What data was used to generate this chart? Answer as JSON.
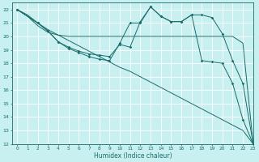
{
  "title": "",
  "xlabel": "Humidex (Indice chaleur)",
  "bg_color": "#c8f0f0",
  "line_color": "#1a6b6b",
  "grid_color": "#ffffff",
  "xmin": -0.5,
  "xmax": 23,
  "ymin": 12,
  "ymax": 22.5,
  "yticks": [
    12,
    13,
    14,
    15,
    16,
    17,
    18,
    19,
    20,
    21,
    22
  ],
  "xticks": [
    0,
    1,
    2,
    3,
    4,
    5,
    6,
    7,
    8,
    9,
    10,
    11,
    12,
    13,
    14,
    15,
    16,
    17,
    18,
    19,
    20,
    21,
    22,
    23
  ],
  "series": [
    {
      "x": [
        0,
        1,
        2,
        3,
        4,
        5,
        6,
        7,
        8,
        9,
        10,
        11,
        12,
        13,
        14,
        15,
        16,
        17,
        18,
        19,
        20,
        21,
        22,
        23
      ],
      "y": [
        22,
        21.6,
        21.0,
        20.5,
        20.1,
        19.7,
        19.3,
        18.9,
        18.5,
        18.1,
        17.7,
        17.4,
        17.0,
        16.6,
        16.2,
        15.8,
        15.4,
        15.0,
        14.6,
        14.2,
        13.8,
        13.4,
        13.0,
        12.0
      ],
      "marker": false
    },
    {
      "x": [
        0,
        1,
        2,
        3,
        4,
        5,
        6,
        7,
        8,
        9,
        10,
        11,
        12,
        13,
        14,
        15,
        16,
        17,
        18,
        19,
        20,
        21,
        22,
        23
      ],
      "y": [
        22,
        21.5,
        20.8,
        20.3,
        20.1,
        20.0,
        20.0,
        20.0,
        20.0,
        20.0,
        20.0,
        20.0,
        20.0,
        20.0,
        20.0,
        20.0,
        20.0,
        20.0,
        20.0,
        20.0,
        20.0,
        20.0,
        19.5,
        12.0
      ],
      "marker": false
    },
    {
      "x": [
        0,
        2,
        3,
        4,
        5,
        6,
        7,
        8,
        9,
        10,
        11,
        12,
        13,
        14,
        15,
        16,
        17,
        18,
        19,
        20,
        21,
        22,
        23
      ],
      "y": [
        22,
        21.0,
        20.4,
        19.6,
        19.2,
        18.9,
        18.7,
        18.6,
        18.5,
        19.4,
        19.2,
        21.1,
        22.2,
        21.5,
        21.1,
        21.1,
        21.6,
        21.6,
        21.4,
        20.2,
        18.2,
        16.5,
        12.0
      ],
      "marker": true
    },
    {
      "x": [
        0,
        2,
        3,
        4,
        5,
        6,
        7,
        8,
        9,
        10,
        11,
        12,
        13,
        14,
        15,
        16,
        17,
        18,
        19,
        20,
        21,
        22,
        23
      ],
      "y": [
        22,
        21.0,
        20.4,
        19.6,
        19.1,
        18.8,
        18.5,
        18.3,
        18.2,
        19.5,
        21.0,
        21.0,
        22.2,
        21.5,
        21.1,
        21.1,
        21.6,
        18.2,
        18.1,
        18.0,
        16.5,
        13.8,
        12.0
      ],
      "marker": true
    }
  ]
}
